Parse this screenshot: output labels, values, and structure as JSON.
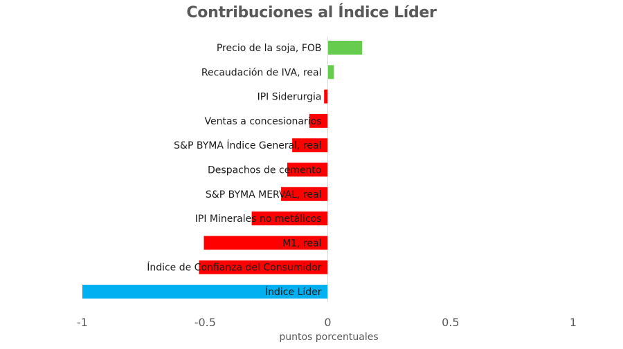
{
  "chart_data": {
    "type": "bar",
    "orientation": "horizontal",
    "title": "Contribuciones al Índice Líder",
    "xlabel": "puntos porcentuales",
    "ylabel": "",
    "xlim": [
      -1,
      1
    ],
    "x_ticks": [
      -1,
      -0.5,
      0,
      0.5,
      1
    ],
    "x_tick_labels": [
      "-1",
      "-0.5",
      "0",
      "0.5",
      "1"
    ],
    "grid": false,
    "legend": "none",
    "categories": [
      "Precio de la soja, FOB",
      "Recaudación de IVA, real",
      "IPI Siderurgia",
      "Ventas a concesionarios",
      "S&P BYMA Índice General, real",
      "Despachos de cemento",
      "S&P BYMA MERVAL, real",
      "IPI Minerales no metálicos",
      "M1, real",
      "Índice de Confianza del Consumidor",
      "Índice Líder"
    ],
    "values": [
      0.14,
      0.025,
      -0.015,
      -0.075,
      -0.145,
      -0.165,
      -0.19,
      -0.31,
      -0.505,
      -0.525,
      -1.0
    ],
    "colors": {
      "positive": "#66cc4d",
      "negative": "#ff0000",
      "total": "#00b0f0"
    }
  }
}
